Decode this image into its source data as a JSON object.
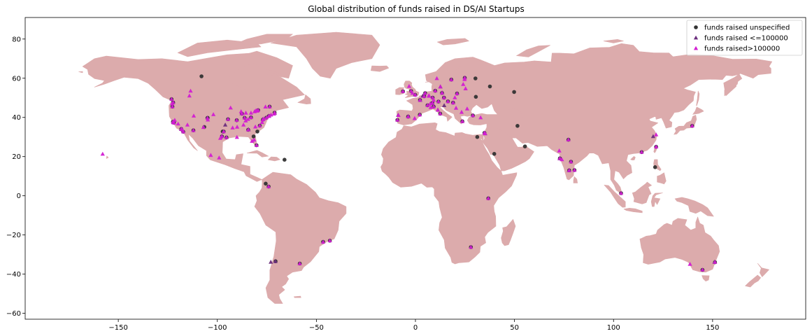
{
  "chart_data": {
    "type": "scatter",
    "title": "Global distribution of funds raised in DS/AI Startups",
    "xlabel": "",
    "ylabel": "",
    "xlim": [
      -197,
      197
    ],
    "ylim": [
      -63,
      91
    ],
    "xticks": [
      -150,
      -100,
      -50,
      0,
      50,
      100,
      150
    ],
    "yticks": [
      -60,
      -40,
      -20,
      0,
      20,
      40,
      60,
      80
    ],
    "grid": false,
    "legend_position": "top-right",
    "basemap_color": "#dcabac",
    "series": [
      {
        "name": "funds raised unspecified",
        "marker": "circle",
        "color": "#333333",
        "points": [
          [
            -122.4,
            37.8
          ],
          [
            -122.1,
            37.4
          ],
          [
            -121.9,
            37.3
          ],
          [
            -118.2,
            34.1
          ],
          [
            -117.2,
            32.7
          ],
          [
            -122.3,
            47.6
          ],
          [
            -123.1,
            49.3
          ],
          [
            -122.7,
            45.5
          ],
          [
            -112.1,
            33.4
          ],
          [
            -108.0,
            61.0
          ],
          [
            -105.0,
            39.7
          ],
          [
            -106.6,
            35.1
          ],
          [
            -97.7,
            30.3
          ],
          [
            -96.8,
            32.8
          ],
          [
            -95.4,
            29.8
          ],
          [
            -97.3,
            32.8
          ],
          [
            -94.6,
            39.1
          ],
          [
            -90.2,
            38.6
          ],
          [
            -87.6,
            41.9
          ],
          [
            -86.2,
            39.8
          ],
          [
            -83.0,
            40.0
          ],
          [
            -84.4,
            33.7
          ],
          [
            -80.2,
            25.8
          ],
          [
            -81.7,
            30.3
          ],
          [
            -78.6,
            35.8
          ],
          [
            -77.0,
            38.9
          ],
          [
            -75.2,
            39.9
          ],
          [
            -74.0,
            40.7
          ],
          [
            -71.1,
            42.4
          ],
          [
            -79.4,
            43.7
          ],
          [
            -73.6,
            45.5
          ],
          [
            -66.1,
            18.4
          ],
          [
            -75.6,
            6.2
          ],
          [
            -74.1,
            4.7
          ],
          [
            -46.6,
            -23.5
          ],
          [
            -43.2,
            -22.9
          ],
          [
            -58.4,
            -34.6
          ],
          [
            -70.6,
            -33.4
          ],
          [
            -6.3,
            53.3
          ],
          [
            -0.1,
            51.5
          ],
          [
            -2.2,
            53.5
          ],
          [
            2.3,
            48.9
          ],
          [
            4.9,
            52.4
          ],
          [
            4.4,
            50.8
          ],
          [
            6.1,
            46.2
          ],
          [
            8.5,
            47.4
          ],
          [
            13.4,
            52.5
          ],
          [
            11.6,
            48.1
          ],
          [
            8.7,
            50.1
          ],
          [
            10.0,
            53.6
          ],
          [
            16.4,
            48.2
          ],
          [
            14.4,
            50.1
          ],
          [
            19.0,
            47.5
          ],
          [
            21.0,
            52.2
          ],
          [
            24.9,
            60.2
          ],
          [
            18.1,
            59.3
          ],
          [
            30.5,
            50.5
          ],
          [
            37.6,
            55.8
          ],
          [
            30.3,
            59.9
          ],
          [
            12.5,
            41.9
          ],
          [
            9.2,
            45.5
          ],
          [
            -3.7,
            40.4
          ],
          [
            2.2,
            41.4
          ],
          [
            -9.1,
            38.7
          ],
          [
            23.7,
            38.0
          ],
          [
            29.0,
            41.0
          ],
          [
            34.8,
            32.1
          ],
          [
            31.2,
            30.0
          ],
          [
            39.8,
            21.4
          ],
          [
            55.3,
            25.2
          ],
          [
            51.5,
            35.7
          ],
          [
            77.6,
            13.0
          ],
          [
            72.9,
            19.1
          ],
          [
            77.2,
            28.6
          ],
          [
            78.5,
            17.4
          ],
          [
            80.3,
            13.1
          ],
          [
            103.8,
            1.3
          ],
          [
            121.0,
            14.6
          ],
          [
            114.2,
            22.3
          ],
          [
            121.5,
            25.0
          ],
          [
            139.7,
            35.7
          ],
          [
            151.2,
            -33.9
          ],
          [
            144.9,
            -37.8
          ],
          [
            28.0,
            -26.2
          ],
          [
            36.8,
            -1.3
          ],
          [
            49.8,
            53.0
          ],
          [
            -79.8,
            32.8
          ],
          [
            -104.9,
            39.8
          ]
        ]
      },
      {
        "name": "funds raised <=100000",
        "marker": "triangle",
        "color": "#6a2c7c",
        "points": [
          [
            -122.2,
            37.5
          ],
          [
            -118.3,
            34.0
          ],
          [
            -97.7,
            30.4
          ],
          [
            -87.7,
            42.0
          ],
          [
            -73.9,
            40.8
          ],
          [
            -71.0,
            42.3
          ],
          [
            -84.3,
            33.8
          ],
          [
            -77.1,
            39.0
          ],
          [
            -0.2,
            51.6
          ],
          [
            2.4,
            48.8
          ],
          [
            13.5,
            52.6
          ],
          [
            8.6,
            47.3
          ],
          [
            12.6,
            55.7
          ],
          [
            14.5,
            46.1
          ],
          [
            11.3,
            43.8
          ],
          [
            -8.7,
            41.2
          ],
          [
            3.7,
            51.0
          ],
          [
            72.8,
            19.0
          ],
          [
            77.5,
            12.9
          ],
          [
            35.2,
            31.8
          ],
          [
            -70.7,
            -33.5
          ],
          [
            -3.6,
            40.5
          ],
          [
            -73.0,
            -33.8
          ],
          [
            151.0,
            -33.8
          ],
          [
            120.0,
            30.3
          ],
          [
            -96.0,
            36.2
          ]
        ]
      },
      {
        "name": "funds raised>100000",
        "marker": "triangle",
        "color": "#d21ed2",
        "points": [
          [
            -122.4,
            37.8
          ],
          [
            -122.0,
            37.4
          ],
          [
            -121.9,
            37.3
          ],
          [
            -118.2,
            34.1
          ],
          [
            -117.2,
            32.7
          ],
          [
            -122.3,
            47.6
          ],
          [
            -123.1,
            49.3
          ],
          [
            -122.7,
            45.5
          ],
          [
            -111.9,
            40.8
          ],
          [
            -115.1,
            36.2
          ],
          [
            -112.1,
            33.4
          ],
          [
            -105.0,
            39.7
          ],
          [
            -104.8,
            38.8
          ],
          [
            -97.7,
            30.3
          ],
          [
            -96.8,
            32.8
          ],
          [
            -95.4,
            29.8
          ],
          [
            -98.5,
            29.4
          ],
          [
            -93.3,
            44.9
          ],
          [
            -94.6,
            39.1
          ],
          [
            -90.2,
            38.6
          ],
          [
            -87.6,
            41.9
          ],
          [
            -86.2,
            39.8
          ],
          [
            -83.0,
            42.3
          ],
          [
            -83.0,
            40.0
          ],
          [
            -84.4,
            33.7
          ],
          [
            -80.2,
            25.8
          ],
          [
            -80.8,
            35.2
          ],
          [
            -78.6,
            35.8
          ],
          [
            -77.0,
            38.9
          ],
          [
            -76.6,
            39.3
          ],
          [
            -75.2,
            39.9
          ],
          [
            -74.0,
            40.7
          ],
          [
            -73.9,
            40.6
          ],
          [
            -71.1,
            42.4
          ],
          [
            -72.9,
            41.3
          ],
          [
            -79.4,
            43.7
          ],
          [
            -75.7,
            45.4
          ],
          [
            -73.6,
            45.5
          ],
          [
            -114.1,
            51.0
          ],
          [
            -113.5,
            53.5
          ],
          [
            -99.1,
            19.4
          ],
          [
            -103.3,
            20.7
          ],
          [
            -157.9,
            21.3
          ],
          [
            -58.4,
            -34.6
          ],
          [
            -46.6,
            -23.6
          ],
          [
            -43.2,
            -22.9
          ],
          [
            -74.1,
            4.7
          ],
          [
            -0.1,
            51.5
          ],
          [
            -2.2,
            53.5
          ],
          [
            -1.5,
            52.4
          ],
          [
            -3.2,
            55.9
          ],
          [
            -6.3,
            53.3
          ],
          [
            2.3,
            48.9
          ],
          [
            4.9,
            52.4
          ],
          [
            4.4,
            50.8
          ],
          [
            6.1,
            46.2
          ],
          [
            8.5,
            47.4
          ],
          [
            7.4,
            46.9
          ],
          [
            13.4,
            52.5
          ],
          [
            11.6,
            48.1
          ],
          [
            8.7,
            50.1
          ],
          [
            10.0,
            53.6
          ],
          [
            9.2,
            48.8
          ],
          [
            6.8,
            51.2
          ],
          [
            6.9,
            50.9
          ],
          [
            16.4,
            48.2
          ],
          [
            14.4,
            50.1
          ],
          [
            19.0,
            47.5
          ],
          [
            21.0,
            52.2
          ],
          [
            19.9,
            50.1
          ],
          [
            24.9,
            60.2
          ],
          [
            18.1,
            59.3
          ],
          [
            10.8,
            59.9
          ],
          [
            12.6,
            55.7
          ],
          [
            24.1,
            56.9
          ],
          [
            25.3,
            54.7
          ],
          [
            24.8,
            59.4
          ],
          [
            26.1,
            44.4
          ],
          [
            23.3,
            42.7
          ],
          [
            20.5,
            44.8
          ],
          [
            12.5,
            41.9
          ],
          [
            9.2,
            45.5
          ],
          [
            7.7,
            45.1
          ],
          [
            11.3,
            43.8
          ],
          [
            -3.7,
            40.4
          ],
          [
            2.2,
            41.4
          ],
          [
            -0.4,
            39.5
          ],
          [
            -9.1,
            38.7
          ],
          [
            -8.6,
            41.1
          ],
          [
            23.7,
            38.0
          ],
          [
            29.0,
            41.0
          ],
          [
            32.9,
            39.9
          ],
          [
            34.8,
            32.1
          ],
          [
            35.2,
            31.8
          ],
          [
            28.0,
            -26.2
          ],
          [
            36.8,
            -1.3
          ],
          [
            77.6,
            13.0
          ],
          [
            72.9,
            19.1
          ],
          [
            77.2,
            28.6
          ],
          [
            78.5,
            17.4
          ],
          [
            80.3,
            13.1
          ],
          [
            73.9,
            18.5
          ],
          [
            72.6,
            23.0
          ],
          [
            103.8,
            1.3
          ],
          [
            114.2,
            22.3
          ],
          [
            121.5,
            25.0
          ],
          [
            121.5,
            31.2
          ],
          [
            139.7,
            35.7
          ],
          [
            151.2,
            -33.9
          ],
          [
            144.9,
            -37.8
          ],
          [
            138.6,
            -34.9
          ],
          [
            -79.9,
            43.3
          ],
          [
            -81.2,
            43.0
          ],
          [
            -80.5,
            43.5
          ],
          [
            -85.7,
            38.3
          ],
          [
            -86.8,
            36.2
          ],
          [
            -90.0,
            35.1
          ],
          [
            -84.5,
            39.1
          ],
          [
            -88.0,
            43.0
          ],
          [
            -85.6,
            42.3
          ],
          [
            -82.5,
            27.9
          ],
          [
            -81.4,
            28.5
          ],
          [
            -71.4,
            41.8
          ],
          [
            -77.4,
            37.5
          ],
          [
            -92.3,
            34.7
          ],
          [
            -90.1,
            29.9
          ],
          [
            -102.0,
            41.5
          ],
          [
            -107.0,
            35.0
          ],
          [
            -117.6,
            33.7
          ],
          [
            -121.5,
            38.6
          ],
          [
            -119.8,
            36.7
          ],
          [
            -122.9,
            47.0
          ]
        ]
      }
    ]
  }
}
